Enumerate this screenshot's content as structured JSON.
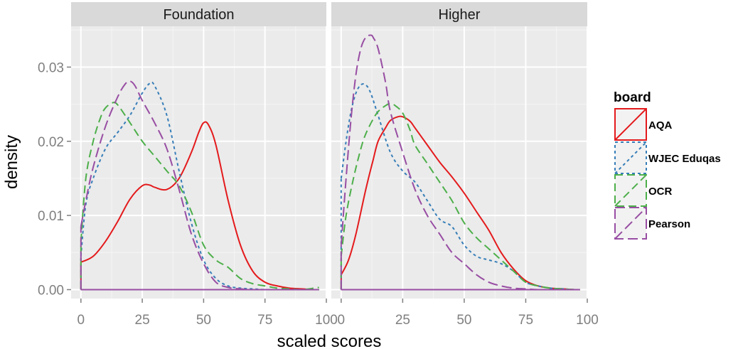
{
  "chart_data": {
    "type": "line",
    "subtype": "density",
    "xlabel": "scaled scores",
    "ylabel": "density",
    "xlim": [
      -4,
      100
    ],
    "ylim": [
      -0.0012,
      0.0355
    ],
    "x_ticks": [
      0,
      25,
      50,
      75,
      100
    ],
    "x_tick_labels": [
      "0",
      "25",
      "50",
      "75",
      "100"
    ],
    "y_ticks": [
      0.0,
      0.01,
      0.02,
      0.03
    ],
    "y_tick_labels": [
      "0.00",
      "0.01",
      "0.02",
      "0.03"
    ],
    "grid": true,
    "legend": {
      "title": "board",
      "position": "right",
      "entries": [
        "AQA",
        "WJEC Eduqas",
        "OCR",
        "Pearson"
      ]
    },
    "colors": {
      "AQA": "#e41a1c",
      "WJEC Eduqas": "#377eb8",
      "OCR": "#4daf4a",
      "Pearson": "#984ea3",
      "panel_bg": "#ebebeb",
      "strip_bg": "#d9d9d9",
      "grid": "#ffffff"
    },
    "panels": [
      {
        "label": "Foundation",
        "series": [
          {
            "name": "AQA",
            "dash": "solid",
            "x": [
              0,
              5,
              10,
              15,
              20,
              25,
              28,
              30,
              35,
              40,
              45,
              48,
              50,
              52,
              55,
              60,
              65,
              70,
              75,
              80,
              85,
              90,
              95,
              97
            ],
            "y": [
              0.0037,
              0.0045,
              0.0065,
              0.0092,
              0.0122,
              0.014,
              0.0141,
              0.0138,
              0.0135,
              0.015,
              0.0185,
              0.0212,
              0.0225,
              0.0222,
              0.0195,
              0.012,
              0.006,
              0.0025,
              0.001,
              0.0005,
              0.0002,
              0.0001,
              0.0,
              0.0
            ]
          },
          {
            "name": "WJEC Eduqas",
            "dash": "dotted",
            "x": [
              0,
              2,
              5,
              10,
              15,
              20,
              25,
              28,
              30,
              35,
              40,
              45,
              50,
              55,
              60,
              65,
              70,
              75,
              80,
              90,
              97
            ],
            "y": [
              0.0045,
              0.0115,
              0.015,
              0.019,
              0.0212,
              0.0235,
              0.0265,
              0.0278,
              0.0275,
              0.0235,
              0.016,
              0.009,
              0.004,
              0.0015,
              0.0005,
              0.0002,
              0.0001,
              0.0,
              0.0,
              0.0,
              0.0
            ]
          },
          {
            "name": "OCR",
            "dash": "dashed",
            "x": [
              0,
              2,
              5,
              8,
              10,
              13,
              15,
              20,
              25,
              30,
              35,
              40,
              45,
              50,
              55,
              60,
              65,
              70,
              75,
              80,
              85,
              90,
              95,
              97
            ],
            "y": [
              0.0065,
              0.015,
              0.02,
              0.0232,
              0.0245,
              0.0252,
              0.0249,
              0.0225,
              0.02,
              0.018,
              0.016,
              0.014,
              0.0105,
              0.006,
              0.004,
              0.003,
              0.0015,
              0.0008,
              0.0005,
              0.0002,
              0.0001,
              0.0,
              0.0002,
              0.0003
            ]
          },
          {
            "name": "Pearson",
            "dash": "longdash",
            "x": [
              0,
              2,
              5,
              10,
              15,
              18,
              20,
              22,
              25,
              30,
              35,
              40,
              45,
              50,
              55,
              60,
              65,
              70,
              80,
              90,
              97
            ],
            "y": [
              0.0085,
              0.012,
              0.0165,
              0.022,
              0.026,
              0.0277,
              0.0281,
              0.0275,
              0.0255,
              0.0225,
              0.019,
              0.0135,
              0.0075,
              0.0035,
              0.001,
              0.0003,
              0.0001,
              0.0,
              0.0,
              0.0,
              0.0
            ]
          }
        ]
      },
      {
        "label": "Higher",
        "series": [
          {
            "name": "AQA",
            "dash": "solid",
            "x": [
              0,
              3,
              6,
              10,
              13,
              15,
              18,
              20,
              23,
              25,
              28,
              30,
              35,
              40,
              45,
              50,
              55,
              60,
              65,
              70,
              75,
              80,
              85,
              90,
              95,
              97
            ],
            "y": [
              0.002,
              0.004,
              0.0075,
              0.0135,
              0.0175,
              0.02,
              0.0218,
              0.0228,
              0.0233,
              0.0233,
              0.0227,
              0.0218,
              0.0195,
              0.0172,
              0.0152,
              0.013,
              0.0105,
              0.008,
              0.005,
              0.0028,
              0.0012,
              0.0005,
              0.0002,
              0.0001,
              0.0,
              0.0
            ]
          },
          {
            "name": "WJEC Eduqas",
            "dash": "dotted",
            "x": [
              0,
              2,
              4,
              6,
              8,
              10,
              12,
              15,
              20,
              25,
              30,
              35,
              40,
              45,
              50,
              55,
              60,
              65,
              70,
              75,
              80,
              85,
              90,
              95,
              97
            ],
            "y": [
              0.015,
              0.02,
              0.024,
              0.0265,
              0.0276,
              0.0276,
              0.0265,
              0.0235,
              0.0185,
              0.016,
              0.0145,
              0.012,
              0.0095,
              0.0085,
              0.006,
              0.0045,
              0.004,
              0.0035,
              0.0025,
              0.001,
              0.0005,
              0.0002,
              0.0001,
              0.0,
              0.0
            ]
          },
          {
            "name": "OCR",
            "dash": "dashed",
            "x": [
              0,
              2,
              5,
              8,
              10,
              13,
              15,
              18,
              20,
              22,
              25,
              28,
              30,
              35,
              40,
              45,
              50,
              55,
              60,
              65,
              70,
              75,
              80,
              85,
              90,
              95,
              97
            ],
            "y": [
              0.0045,
              0.01,
              0.015,
              0.019,
              0.021,
              0.023,
              0.024,
              0.0248,
              0.0251,
              0.0248,
              0.0238,
              0.0215,
              0.0195,
              0.017,
              0.0145,
              0.012,
              0.009,
              0.007,
              0.0055,
              0.004,
              0.0025,
              0.001,
              0.0005,
              0.0002,
              0.0001,
              0.0,
              0.0
            ]
          },
          {
            "name": "Pearson",
            "dash": "longdash",
            "x": [
              0,
              2,
              4,
              6,
              8,
              10,
              12,
              13,
              15,
              18,
              20,
              25,
              30,
              35,
              40,
              45,
              50,
              55,
              60,
              65,
              70,
              75,
              80,
              90,
              97
            ],
            "y": [
              0.006,
              0.015,
              0.023,
              0.029,
              0.0325,
              0.034,
              0.0343,
              0.034,
              0.0325,
              0.028,
              0.024,
              0.0185,
              0.0135,
              0.01,
              0.0075,
              0.005,
              0.0035,
              0.002,
              0.001,
              0.0005,
              0.0002,
              0.0001,
              0.0,
              0.0,
              0.0
            ]
          }
        ]
      }
    ]
  }
}
